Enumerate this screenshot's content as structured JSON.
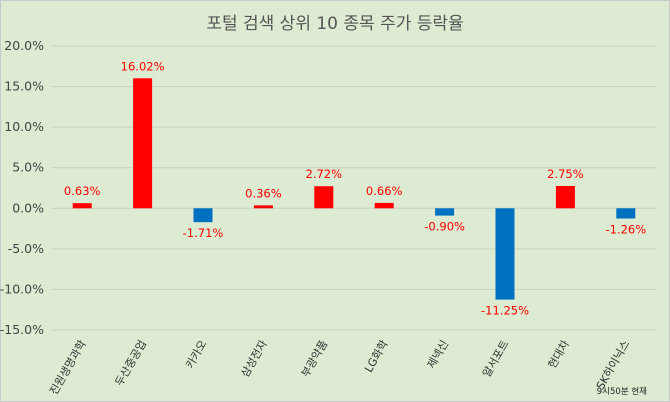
{
  "chart_data": {
    "type": "bar",
    "title": "포털 검색 상위 10 종목 주가 등락율",
    "xlabel": "",
    "ylabel": "",
    "ylim": [
      -15,
      20
    ],
    "yticks": [
      20,
      15,
      10,
      5,
      0,
      -5,
      -10,
      -15
    ],
    "ytick_labels": [
      "20.0%",
      "15.0%",
      "10.0%",
      "5.0%",
      "0.0%",
      "-5.0%",
      "-10.0%",
      "-15.0%"
    ],
    "categories": [
      "진원생명과학",
      "두산중공업",
      "카카오",
      "삼성전자",
      "부광약품",
      "LG화학",
      "제넥신",
      "알서포트",
      "현대차",
      "SK하이닉스"
    ],
    "values": [
      0.63,
      16.02,
      -1.71,
      0.36,
      2.72,
      0.66,
      -0.9,
      -11.25,
      2.75,
      -1.26
    ],
    "data_labels": [
      "0.63%",
      "16.02%",
      "-1.71%",
      "0.36%",
      "2.72%",
      "0.66%",
      "-0.90%",
      "-11.25%",
      "2.75%",
      "-1.26%"
    ],
    "colors": {
      "positive": "#ff0000",
      "negative": "#0070c0",
      "label": "#ff0000"
    },
    "grid": true,
    "legend": "none",
    "annotation": "9시50분 현재"
  }
}
